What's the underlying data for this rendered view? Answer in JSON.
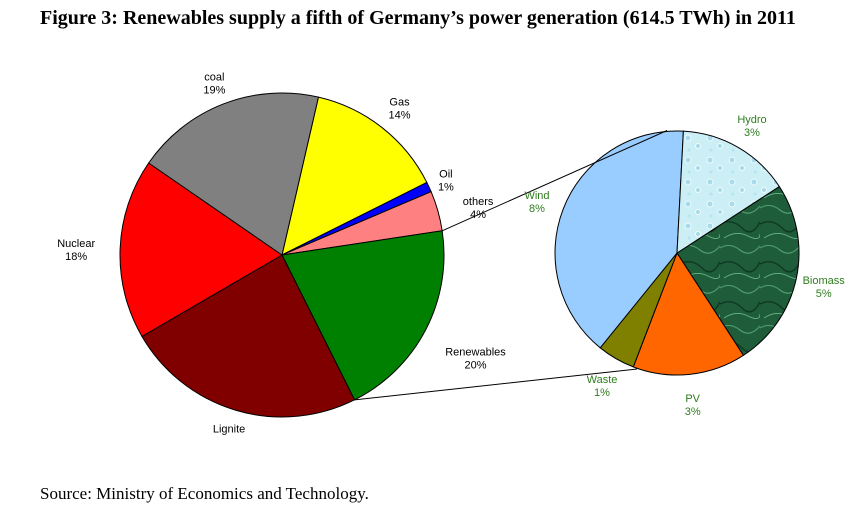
{
  "title": "Figure 3: Renewables supply a fifth of Germany’s power generation (614.5 TWh) in 2011",
  "source": "Source: Ministry of Economics and Technology.",
  "chart_data": [
    {
      "type": "pie",
      "slices": [
        {
          "label": "Gas",
          "value": 14,
          "value_label": "14%",
          "color": "#ffff00"
        },
        {
          "label": "Oil",
          "value": 1,
          "value_label": "1%",
          "color": "#0000ff"
        },
        {
          "label": "others",
          "value": 4,
          "value_label": "4%",
          "color": "#ff8080"
        },
        {
          "label": "Renewables",
          "value": 20,
          "value_label": "20%",
          "color": "#008000"
        },
        {
          "label": "Lignite",
          "value": 24,
          "value_label": "",
          "color": "#800000"
        },
        {
          "label": "Nuclear",
          "value": 18,
          "value_label": "18%",
          "color": "#ff0000"
        },
        {
          "label": "coal",
          "value": 19,
          "value_label": "19%",
          "color": "#808080"
        }
      ]
    },
    {
      "type": "pie",
      "slices": [
        {
          "label": "Biomass",
          "value": 5,
          "value_label": "5%",
          "color": "#1e5c3a"
        },
        {
          "label": "PV",
          "value": 3,
          "value_label": "3%",
          "color": "#ff6600"
        },
        {
          "label": "Waste",
          "value": 1,
          "value_label": "1%",
          "color": "#808000"
        },
        {
          "label": "Wind",
          "value": 8,
          "value_label": "8%",
          "color": "#99ccff"
        },
        {
          "label": "Hydro",
          "value": 3,
          "value_label": "3%",
          "color": "#cceef5"
        }
      ]
    }
  ]
}
